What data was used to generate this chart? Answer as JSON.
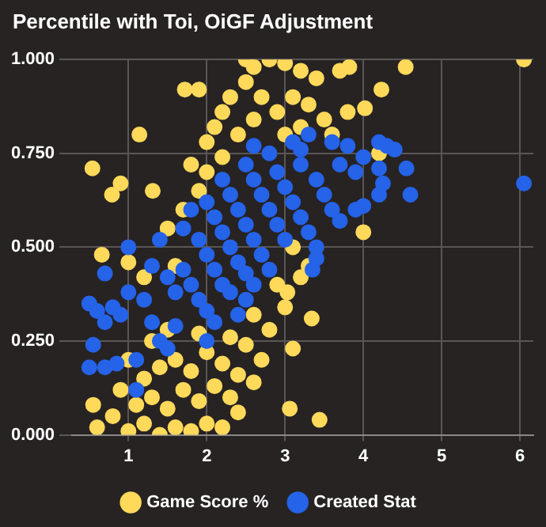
{
  "chart_data": {
    "type": "scatter",
    "title": "Percentile with Toi, OiGF Adjustment",
    "xlim": [
      0.28,
      6.17
    ],
    "xticks": [
      1,
      2,
      3,
      4,
      5,
      6
    ],
    "ylim": [
      0,
      1
    ],
    "yticks": [
      {
        "value": 0,
        "label": "0.000"
      },
      {
        "value": 0.25,
        "label": "0.250"
      },
      {
        "value": 0.5,
        "label": "0.500"
      },
      {
        "value": 0.75,
        "label": "0.750"
      },
      {
        "value": 1,
        "label": "1.000"
      }
    ],
    "grid": true,
    "legend": "bottom",
    "marker": "circle",
    "series": [
      {
        "name": "Game Score %",
        "color": "#ffd95a",
        "x": [
          0.6,
          0.8,
          1.0,
          1.2,
          1.4,
          1.6,
          1.8,
          2.0,
          2.2,
          1.1,
          1.3,
          1.5,
          1.7,
          1.9,
          2.1,
          2.3,
          2.4,
          1.2,
          1.4,
          1.6,
          1.8,
          2.0,
          2.2,
          2.4,
          2.6,
          0.9,
          1.0,
          1.3,
          1.5,
          1.9,
          2.3,
          2.5,
          2.7,
          2.8,
          2.6,
          3.0,
          2.9,
          3.2,
          3.3,
          3.1,
          1.5,
          1.7,
          1.9,
          1.8,
          2.0,
          2.1,
          2.2,
          2.3,
          2.5,
          2.6,
          2.8,
          3.0,
          3.2,
          3.4,
          2.7,
          2.9,
          3.1,
          3.3,
          3.5,
          3.6,
          2.4,
          2.6,
          3.8,
          3.0,
          3.2,
          2.0,
          2.2,
          1.6,
          1.2,
          1.0,
          2.5,
          3.7,
          1.9,
          6.05,
          0.54,
          1.14,
          0.79,
          0.9,
          0.66,
          0.55,
          4.0,
          3.06,
          3.44,
          3.34,
          3.03,
          3.1,
          4.2,
          4.54,
          4.23,
          3.82,
          1.31,
          1.72,
          4.02
        ],
        "values": [
          0.02,
          0.05,
          0.01,
          0.03,
          0.0,
          0.02,
          0.01,
          0.03,
          0.02,
          0.08,
          0.1,
          0.07,
          0.12,
          0.09,
          0.13,
          0.1,
          0.06,
          0.15,
          0.18,
          0.2,
          0.17,
          0.22,
          0.19,
          0.16,
          0.14,
          0.12,
          0.2,
          0.25,
          0.28,
          0.27,
          0.26,
          0.24,
          0.2,
          0.28,
          0.32,
          0.34,
          0.4,
          0.42,
          0.45,
          0.5,
          0.55,
          0.6,
          0.65,
          0.72,
          0.78,
          0.82,
          0.86,
          0.9,
          0.94,
          0.98,
          1.0,
          0.99,
          0.97,
          0.95,
          0.9,
          0.86,
          0.9,
          0.88,
          0.84,
          0.8,
          0.8,
          0.84,
          0.86,
          0.8,
          0.82,
          0.7,
          0.74,
          0.45,
          0.42,
          0.46,
          1.0,
          0.97,
          0.92,
          1.0,
          0.71,
          0.8,
          0.64,
          0.67,
          0.48,
          0.08,
          0.54,
          0.07,
          0.04,
          0.31,
          0.38,
          0.23,
          0.75,
          0.98,
          0.92,
          0.98,
          0.65,
          0.92,
          0.87
        ]
      },
      {
        "name": "Created Stat",
        "color": "#2563e8",
        "x": [
          0.5,
          0.6,
          0.7,
          0.8,
          0.9,
          0.55,
          0.5,
          0.7,
          0.85,
          1.1,
          1.1,
          0.7,
          1.0,
          1.0,
          1.2,
          1.3,
          1.4,
          1.5,
          1.6,
          1.3,
          1.4,
          1.5,
          1.6,
          1.7,
          1.8,
          1.9,
          2.0,
          2.0,
          2.1,
          1.7,
          1.8,
          1.9,
          2.0,
          2.1,
          2.2,
          2.3,
          2.4,
          2.5,
          2.0,
          2.1,
          2.2,
          2.3,
          2.4,
          2.5,
          2.6,
          2.2,
          2.3,
          2.4,
          2.5,
          2.6,
          2.7,
          2.8,
          2.5,
          2.6,
          2.7,
          2.8,
          2.9,
          3.0,
          2.6,
          2.8,
          2.9,
          3.0,
          3.1,
          3.2,
          3.3,
          3.4,
          3.1,
          3.3,
          3.2,
          3.4,
          3.5,
          3.6,
          3.4,
          3.2,
          3.7,
          3.6,
          3.8,
          3.9,
          4.0,
          4.2,
          4.3,
          4.4,
          4.2,
          4.25,
          4.2,
          4.55,
          4.6,
          4.0,
          3.9,
          3.7,
          6.05,
          3.35
        ],
        "values": [
          0.35,
          0.33,
          0.3,
          0.34,
          0.32,
          0.24,
          0.18,
          0.18,
          0.19,
          0.2,
          0.12,
          0.43,
          0.5,
          0.38,
          0.36,
          0.3,
          0.25,
          0.23,
          0.29,
          0.45,
          0.52,
          0.42,
          0.38,
          0.44,
          0.4,
          0.36,
          0.33,
          0.25,
          0.3,
          0.55,
          0.6,
          0.52,
          0.48,
          0.44,
          0.4,
          0.38,
          0.32,
          0.36,
          0.62,
          0.58,
          0.54,
          0.5,
          0.46,
          0.43,
          0.4,
          0.68,
          0.64,
          0.6,
          0.56,
          0.52,
          0.48,
          0.44,
          0.72,
          0.68,
          0.64,
          0.6,
          0.56,
          0.52,
          0.77,
          0.75,
          0.7,
          0.66,
          0.62,
          0.58,
          0.54,
          0.5,
          0.78,
          0.8,
          0.72,
          0.68,
          0.64,
          0.6,
          0.47,
          0.76,
          0.72,
          0.78,
          0.77,
          0.7,
          0.74,
          0.78,
          0.77,
          0.76,
          0.71,
          0.67,
          0.64,
          0.71,
          0.64,
          0.61,
          0.6,
          0.57,
          0.67,
          0.44
        ]
      }
    ]
  }
}
